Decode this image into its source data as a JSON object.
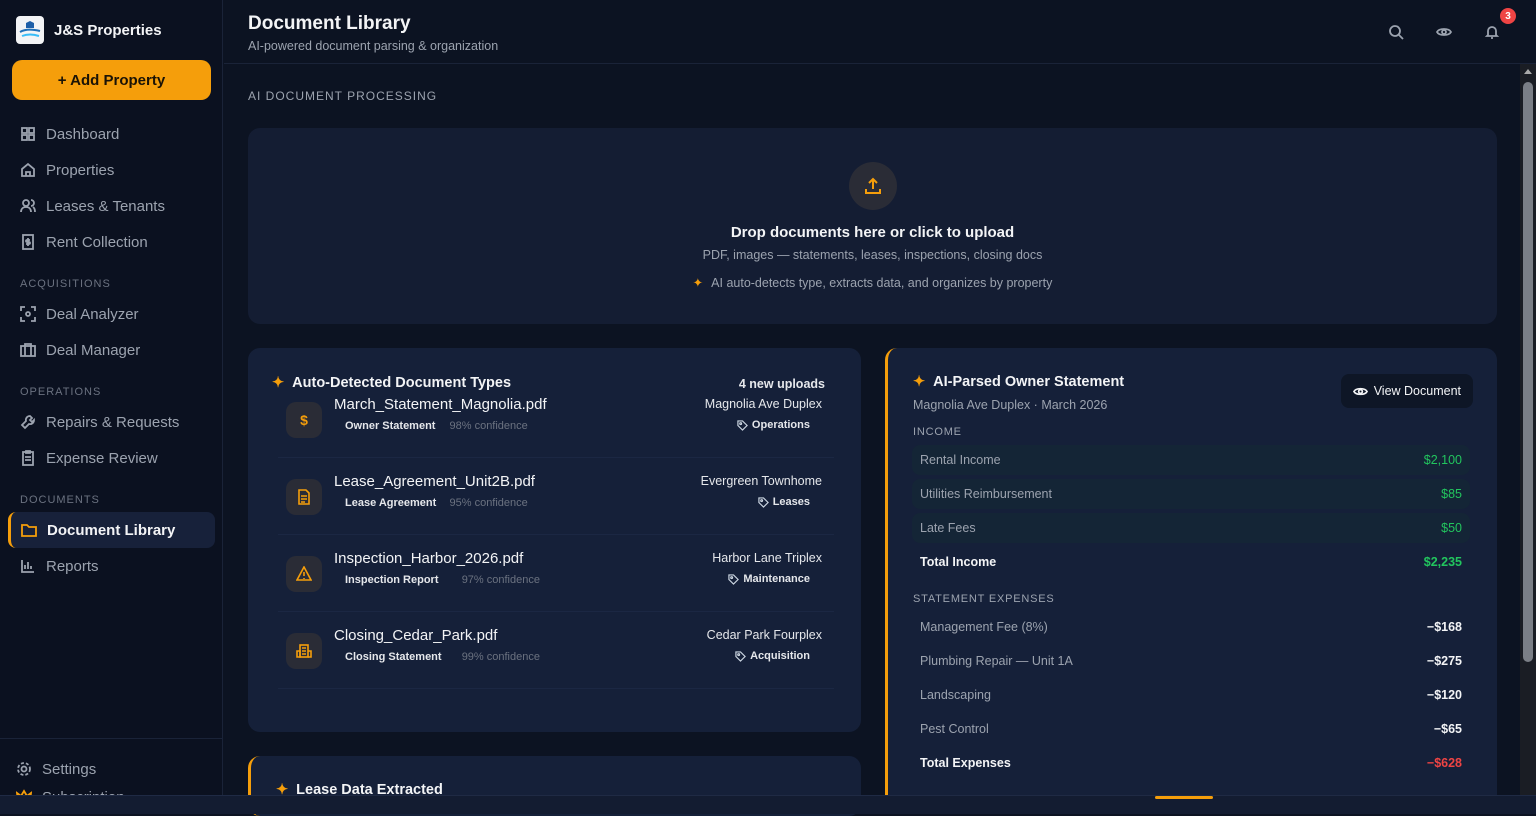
{
  "sidebar": {
    "brand": "J&S Properties",
    "add_button": "+ Add Property",
    "items": [
      {
        "label": "Dashboard",
        "icon": "grid-icon"
      },
      {
        "label": "Properties",
        "icon": "home-icon"
      },
      {
        "label": "Leases & Tenants",
        "icon": "users-icon"
      },
      {
        "label": "Rent Collection",
        "icon": "receipt-icon"
      }
    ],
    "sections": [
      {
        "label": "ACQUISITIONS",
        "items": [
          {
            "label": "Deal Analyzer",
            "icon": "scan-icon"
          },
          {
            "label": "Deal Manager",
            "icon": "briefcase-icon"
          }
        ]
      },
      {
        "label": "OPERATIONS",
        "items": [
          {
            "label": "Repairs & Requests",
            "icon": "wrench-icon"
          },
          {
            "label": "Expense Review",
            "icon": "clipboard-icon"
          }
        ]
      },
      {
        "label": "DOCUMENTS",
        "items": [
          {
            "label": "Document Library",
            "icon": "folder-icon",
            "active": true
          },
          {
            "label": "Reports",
            "icon": "bar-chart-icon"
          }
        ]
      }
    ],
    "bottom": [
      {
        "label": "Settings",
        "icon": "gear-icon"
      },
      {
        "label": "Subscription",
        "icon": "crown-icon"
      }
    ]
  },
  "header": {
    "title": "Document Library",
    "subtitle": "AI-powered document parsing & organization",
    "notification_count": "3"
  },
  "section_label": "AI DOCUMENT PROCESSING",
  "upload": {
    "title": "Drop documents here or click to upload",
    "subtitle": "PDF, images — statements, leases, inspections, closing docs",
    "ai_note": "AI auto-detects type, extracts data, and organizes by property"
  },
  "detected": {
    "title": "Auto-Detected Document Types",
    "count": "4 new uploads",
    "docs": [
      {
        "name": "March_Statement_Magnolia.pdf",
        "type": "Owner Statement",
        "confidence": "98% confidence",
        "property": "Magnolia Ave Duplex",
        "category": "Operations",
        "icon": "dollar-icon"
      },
      {
        "name": "Lease_Agreement_Unit2B.pdf",
        "type": "Lease Agreement",
        "confidence": "95% confidence",
        "property": "Evergreen Townhome",
        "category": "Leases",
        "icon": "file-text-icon"
      },
      {
        "name": "Inspection_Harbor_2026.pdf",
        "type": "Inspection Report",
        "confidence": "97% confidence",
        "property": "Harbor Lane Triplex",
        "category": "Maintenance",
        "icon": "warning-icon"
      },
      {
        "name": "Closing_Cedar_Park.pdf",
        "type": "Closing Statement",
        "confidence": "99% confidence",
        "property": "Cedar Park Fourplex",
        "category": "Acquisition",
        "icon": "building-icon"
      }
    ]
  },
  "lease_card": {
    "title": "Lease Data Extracted"
  },
  "statement": {
    "title": "AI-Parsed Owner Statement",
    "subtitle": "Magnolia Ave Duplex · March 2026",
    "view_button": "View Document",
    "income_label": "INCOME",
    "income": [
      {
        "label": "Rental Income",
        "value": "$2,100"
      },
      {
        "label": "Utilities Reimbursement",
        "value": "$85"
      },
      {
        "label": "Late Fees",
        "value": "$50"
      }
    ],
    "total_income": {
      "label": "Total Income",
      "value": "$2,235"
    },
    "expense_label": "STATEMENT EXPENSES",
    "expenses": [
      {
        "label": "Management Fee (8%)",
        "value": "−$168"
      },
      {
        "label": "Plumbing Repair — Unit 1A",
        "value": "−$275"
      },
      {
        "label": "Landscaping",
        "value": "−$120"
      },
      {
        "label": "Pest Control",
        "value": "−$65"
      }
    ],
    "total_expenses": {
      "label": "Total Expenses",
      "value": "−$628"
    }
  },
  "colors": {
    "accent": "#f59e0b",
    "positive": "#22c55e",
    "negative": "#ef4444"
  }
}
